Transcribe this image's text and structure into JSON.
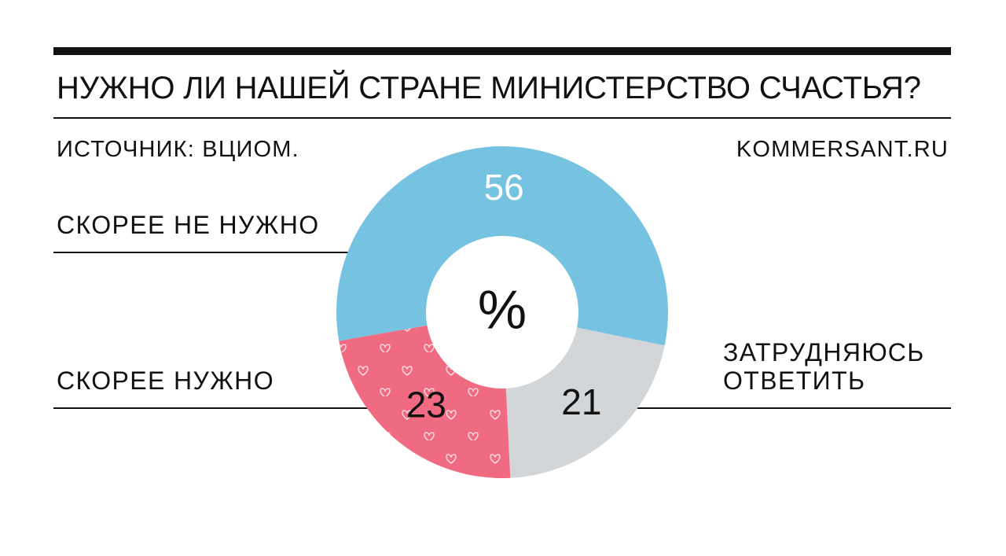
{
  "header": {
    "title": "НУЖНО ЛИ НАШЕЙ СТРАНЕ МИНИСТЕРСТВО СЧАСТЬЯ?",
    "source": "ИСТОЧНИК: ВЦИОМ.",
    "site": "KOMMERSANT.RU"
  },
  "colors": {
    "accent_pink": "#e8697f",
    "rule": "#111111"
  },
  "chart_data": {
    "type": "pie",
    "center_label": "%",
    "series": [
      {
        "name": "СКОРЕЕ НЕ НУЖНО",
        "value": 56,
        "color": "#76c3e1",
        "label_color": "#ffffff",
        "pattern": ""
      },
      {
        "name": "ЗАТРУДНЯЮСЬ ОТВЕТИТЬ",
        "value": 21,
        "color": "#d3d6d8",
        "label_color": "#111111",
        "pattern": ""
      },
      {
        "name": "СКОРЕЕ НУЖНО",
        "value": 23,
        "color": "#f06b81",
        "label_color": "#111111",
        "pattern": "hearts"
      }
    ]
  }
}
